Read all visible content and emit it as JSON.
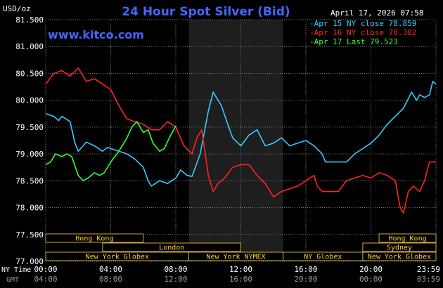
{
  "chart_data": {
    "type": "line",
    "title": "24 Hour Spot Silver (Bid)",
    "unit_label": "USD/oz",
    "website": "www.kitco.com",
    "timestamp": "April 17, 2026 07:58",
    "ylim": [
      77.0,
      81.5
    ],
    "y_ticks": [
      "81.500",
      "81.000",
      "80.500",
      "80.000",
      "79.500",
      "79.000",
      "78.500",
      "78.000",
      "77.500",
      "77.000"
    ],
    "xlim": [
      0,
      24
    ],
    "x_ticks_ny": [
      "00:00",
      "04:00",
      "08:00",
      "12:00",
      "16:00",
      "20:00",
      "23:59"
    ],
    "x_ticks_gmt": [
      "04:00",
      "08:00",
      "12:00",
      "16:00",
      "20:00",
      "00:00",
      "03:59"
    ],
    "row_labels": {
      "ny": "NY Time",
      "gmt": "GMT"
    },
    "legend": [
      "Apr 15 NY close 78.859",
      "Apr 16 NY close 78.302",
      "Apr 17 Last 79.523"
    ],
    "sessions": [
      {
        "label": "Hong Kong",
        "row": 0,
        "start": 0,
        "end": 6
      },
      {
        "label": "London",
        "row": 1,
        "start": 3.5,
        "end": 12
      },
      {
        "label": "New York Globex",
        "row": 2,
        "start": 0,
        "end": 8.8
      },
      {
        "label": "New York NYMEX",
        "row": 2,
        "start": 8.8,
        "end": 14.6
      },
      {
        "label": "NY Globex",
        "row": 2,
        "start": 14.6,
        "end": 19.5
      },
      {
        "label": "Hong Kong",
        "row": 0,
        "start": 20.5,
        "end": 24
      },
      {
        "label": "Sydney",
        "row": 1,
        "start": 19.5,
        "end": 24
      },
      {
        "label": "New York Globex",
        "row": 2,
        "start": 19.5,
        "end": 24
      }
    ],
    "market_closed_band": [
      8.8,
      14.6
    ],
    "series": [
      {
        "name": "Apr 15 NY close 78.859",
        "color": "#33ccff",
        "x": [
          0,
          0.5,
          0.8,
          1,
          1.5,
          1.8,
          2,
          2.3,
          2.5,
          3,
          3.5,
          3.8,
          4,
          4.5,
          5,
          5.5,
          6,
          6.3,
          6.5,
          7,
          7.5,
          8,
          8.3,
          8.7,
          9,
          9.5,
          10,
          10.3,
          10.8,
          11.2,
          11.5,
          12,
          12.5,
          13,
          13.5,
          14,
          14.5,
          15,
          15.5,
          16,
          16.5,
          17,
          17.2,
          17.5,
          18,
          18.5,
          19,
          19.5,
          20,
          20.5,
          21,
          21.5,
          22,
          22.5,
          22.8,
          23,
          23.3,
          23.6,
          23.8,
          24
        ],
        "values": [
          79.75,
          79.7,
          79.62,
          79.7,
          79.6,
          79.2,
          79.05,
          79.15,
          79.22,
          79.15,
          79.05,
          79.12,
          79.1,
          79.05,
          79.0,
          78.9,
          78.75,
          78.5,
          78.4,
          78.5,
          78.45,
          78.55,
          78.7,
          78.6,
          78.58,
          79.0,
          79.8,
          80.15,
          79.9,
          79.55,
          79.3,
          79.15,
          79.35,
          79.45,
          79.15,
          79.2,
          79.3,
          79.15,
          79.2,
          79.25,
          79.15,
          79.0,
          78.85,
          78.85,
          78.85,
          78.85,
          79.0,
          79.1,
          79.2,
          79.35,
          79.55,
          79.7,
          79.85,
          80.15,
          80.0,
          80.1,
          80.05,
          80.1,
          80.35,
          80.3
        ]
      },
      {
        "name": "Apr 16 NY close 78.302",
        "color": "#ff2222",
        "x": [
          0,
          0.5,
          1,
          1.5,
          2,
          2.5,
          3,
          3.5,
          4,
          4.5,
          5,
          5.5,
          6,
          6.5,
          7,
          7.5,
          8,
          8.5,
          9,
          9.3,
          9.6,
          10,
          10.3,
          10.6,
          11,
          11.5,
          12,
          12.5,
          13,
          13.5,
          14,
          14.5,
          15,
          15.5,
          16,
          16.5,
          16.7,
          17,
          17.5,
          18,
          18.5,
          19,
          19.5,
          20,
          20.5,
          21,
          21.5,
          21.8,
          22,
          22.3,
          22.6,
          23,
          23.3,
          23.6,
          24
        ],
        "values": [
          80.3,
          80.5,
          80.55,
          80.45,
          80.6,
          80.35,
          80.4,
          80.3,
          80.2,
          79.9,
          79.65,
          79.6,
          79.55,
          79.45,
          79.45,
          79.6,
          79.5,
          79.15,
          79.0,
          79.3,
          79.45,
          78.6,
          78.3,
          78.45,
          78.55,
          78.75,
          78.8,
          78.8,
          78.6,
          78.45,
          78.2,
          78.3,
          78.35,
          78.4,
          78.5,
          78.6,
          78.4,
          78.3,
          78.3,
          78.3,
          78.5,
          78.55,
          78.6,
          78.55,
          78.65,
          78.6,
          78.5,
          78.0,
          77.9,
          78.3,
          78.4,
          78.3,
          78.5,
          78.85,
          78.85
        ]
      },
      {
        "name": "Apr 17 Last 79.523",
        "color": "#33ff33",
        "x": [
          0,
          0.3,
          0.6,
          1,
          1.3,
          1.6,
          2,
          2.3,
          2.6,
          3,
          3.3,
          3.6,
          4,
          4.5,
          5,
          5.3,
          5.6,
          6,
          6.3,
          6.6,
          7,
          7.3,
          7.6,
          8
        ],
        "values": [
          78.8,
          78.85,
          79.0,
          78.95,
          79.0,
          78.95,
          78.6,
          78.5,
          78.55,
          78.65,
          78.6,
          78.65,
          78.85,
          79.05,
          79.3,
          79.5,
          79.6,
          79.4,
          79.45,
          79.2,
          79.05,
          79.1,
          79.3,
          79.523
        ]
      }
    ]
  }
}
